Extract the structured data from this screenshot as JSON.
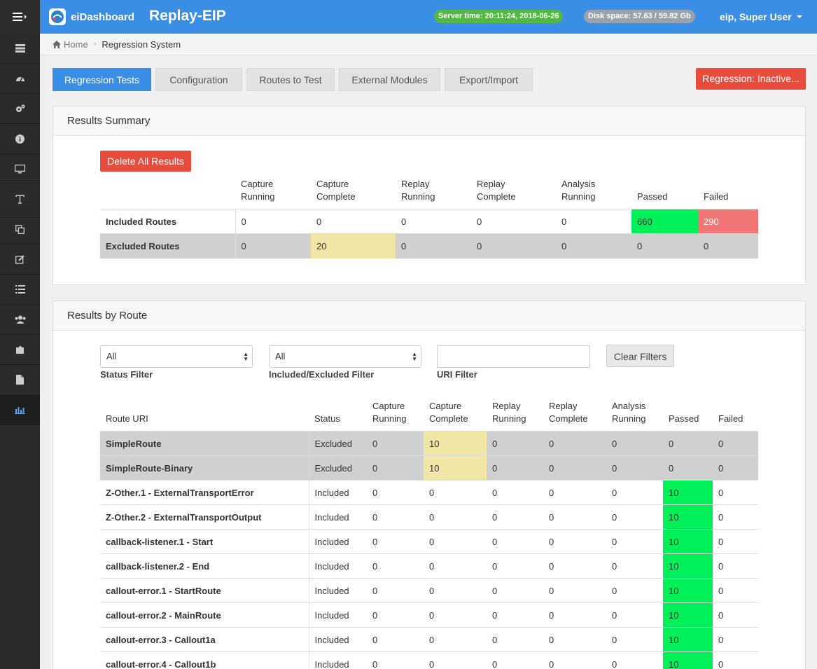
{
  "header": {
    "logo_text": "eiDashboard",
    "app_title": "Replay-EIP",
    "server_time": "Server time: 20:11:24, 2018-06-26",
    "disk_space": "Disk space: 57.63 / 59.82 Gb",
    "user": "eip, Super User"
  },
  "sidebar": {
    "icons": [
      "server-icon",
      "dashboard-icon",
      "cogs-icon",
      "info-icon",
      "monitor-icon",
      "text-icon",
      "copy-icon",
      "edit-icon",
      "list-icon",
      "users-icon",
      "puzzle-icon",
      "file-icon",
      "bar-chart-icon"
    ]
  },
  "breadcrumb": {
    "home": "Home",
    "current": "Regression System"
  },
  "tabs": {
    "regression_tests": "Regression Tests",
    "configuration": "Configuration",
    "routes_to_test": "Routes to Test",
    "external_modules": "External Modules",
    "export_import": "Export/Import",
    "regression_status": "Regression: Inactive..."
  },
  "summary": {
    "title": "Results Summary",
    "delete_button": "Delete All Results",
    "columns": {
      "capture_running": [
        "Capture",
        "Running"
      ],
      "capture_complete": [
        "Capture",
        "Complete"
      ],
      "replay_running": [
        "Replay",
        "Running"
      ],
      "replay_complete": [
        "Replay",
        "Complete"
      ],
      "analysis_running": [
        "Analysis",
        "Running"
      ],
      "passed": "Passed",
      "failed": "Failed"
    },
    "rows": [
      {
        "label": "Included Routes",
        "values": [
          "0",
          "0",
          "0",
          "0",
          "0",
          "660",
          "290"
        ]
      },
      {
        "label": "Excluded Routes",
        "values": [
          "0",
          "20",
          "0",
          "0",
          "0",
          "0",
          "0"
        ]
      }
    ]
  },
  "by_route": {
    "title": "Results by Route",
    "status_filter": {
      "value": "All",
      "label": "Status Filter"
    },
    "inc_filter": {
      "value": "All",
      "label": "Included/Excluded Filter"
    },
    "uri_filter": {
      "value": "",
      "label": "URI Filter"
    },
    "clear_button": "Clear Filters",
    "columns": {
      "route_uri": "Route URI",
      "status": "Status",
      "capture_running": [
        "Capture",
        "Running"
      ],
      "capture_complete": [
        "Capture",
        "Complete"
      ],
      "replay_running": [
        "Replay",
        "Running"
      ],
      "replay_complete": [
        "Replay",
        "Complete"
      ],
      "analysis_running": [
        "Analysis",
        "Running"
      ],
      "passed": "Passed",
      "failed": "Failed"
    },
    "rows": [
      {
        "uri": "SimpleRoute",
        "status": "Excluded",
        "values": [
          "0",
          "10",
          "0",
          "0",
          "0",
          "0",
          "0"
        ]
      },
      {
        "uri": "SimpleRoute-Binary",
        "status": "Excluded",
        "values": [
          "0",
          "10",
          "0",
          "0",
          "0",
          "0",
          "0"
        ]
      },
      {
        "uri": "Z-Other.1 - ExternalTransportError",
        "status": "Included",
        "values": [
          "0",
          "0",
          "0",
          "0",
          "0",
          "10",
          "0"
        ]
      },
      {
        "uri": "Z-Other.2 - ExternalTransportOutput",
        "status": "Included",
        "values": [
          "0",
          "0",
          "0",
          "0",
          "0",
          "10",
          "0"
        ]
      },
      {
        "uri": "callback-listener.1 - Start",
        "status": "Included",
        "values": [
          "0",
          "0",
          "0",
          "0",
          "0",
          "10",
          "0"
        ]
      },
      {
        "uri": "callback-listener.2 - End",
        "status": "Included",
        "values": [
          "0",
          "0",
          "0",
          "0",
          "0",
          "10",
          "0"
        ]
      },
      {
        "uri": "callout-error.1 - StartRoute",
        "status": "Included",
        "values": [
          "0",
          "0",
          "0",
          "0",
          "0",
          "10",
          "0"
        ]
      },
      {
        "uri": "callout-error.2 - MainRoute",
        "status": "Included",
        "values": [
          "0",
          "0",
          "0",
          "0",
          "0",
          "10",
          "0"
        ]
      },
      {
        "uri": "callout-error.3 - Callout1a",
        "status": "Included",
        "values": [
          "0",
          "0",
          "0",
          "0",
          "0",
          "10",
          "0"
        ]
      },
      {
        "uri": "callout-error.4 - Callout1b",
        "status": "Included",
        "values": [
          "0",
          "0",
          "0",
          "0",
          "0",
          "10",
          "0"
        ]
      }
    ]
  },
  "colors": {
    "primary": "#3a8ee6",
    "danger": "#e74c3c",
    "passed": "#00f05a",
    "failed": "#f07575",
    "capture_complete": "#f0e6a6",
    "excluded_row": "#d0d0d0"
  }
}
